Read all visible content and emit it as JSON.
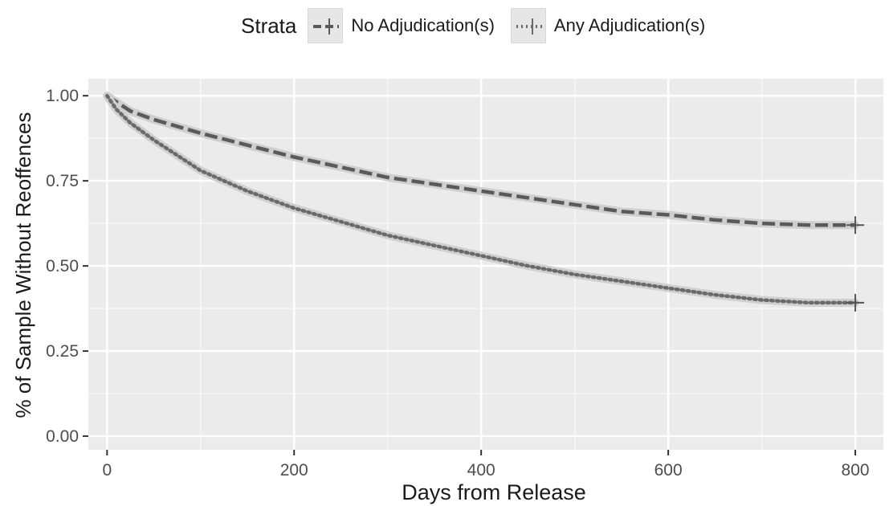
{
  "chart_data": {
    "type": "line",
    "legend": {
      "title": "Strata",
      "placement": "top"
    },
    "xlabel": "Days from Release",
    "ylabel": "% of Sample Without Reoffences",
    "xlim": [
      -20,
      830
    ],
    "ylim": [
      -0.04,
      1.05
    ],
    "xticks": [
      0,
      200,
      400,
      600,
      800
    ],
    "xtick_labels": [
      "0",
      "200",
      "400",
      "600",
      "800"
    ],
    "yticks": [
      0,
      0.25,
      0.5,
      0.75,
      1.0
    ],
    "ytick_labels": [
      "0.00",
      "0.25",
      "0.50",
      "0.75",
      "1.00"
    ],
    "grid": true,
    "series": [
      {
        "name": "No Adjudication(s)",
        "style": "dashed",
        "color": "#5a5a5a",
        "x": [
          0,
          25,
          50,
          100,
          150,
          200,
          250,
          300,
          350,
          400,
          450,
          500,
          550,
          600,
          650,
          700,
          750,
          800
        ],
        "y": [
          1.0,
          0.955,
          0.93,
          0.89,
          0.855,
          0.82,
          0.79,
          0.76,
          0.74,
          0.72,
          0.7,
          0.68,
          0.66,
          0.65,
          0.635,
          0.625,
          0.62,
          0.62
        ],
        "censor_x": 800,
        "censor_y": 0.62
      },
      {
        "name": "Any Adjudication(s)",
        "style": "dotted",
        "color": "#6a6a6a",
        "x": [
          0,
          10,
          25,
          50,
          100,
          150,
          200,
          250,
          300,
          350,
          400,
          450,
          500,
          550,
          600,
          650,
          700,
          750,
          800
        ],
        "y": [
          1.0,
          0.96,
          0.92,
          0.87,
          0.78,
          0.72,
          0.67,
          0.63,
          0.59,
          0.56,
          0.53,
          0.5,
          0.475,
          0.455,
          0.435,
          0.415,
          0.4,
          0.392,
          0.392
        ],
        "censor_x": 800,
        "censor_y": 0.392
      }
    ]
  }
}
